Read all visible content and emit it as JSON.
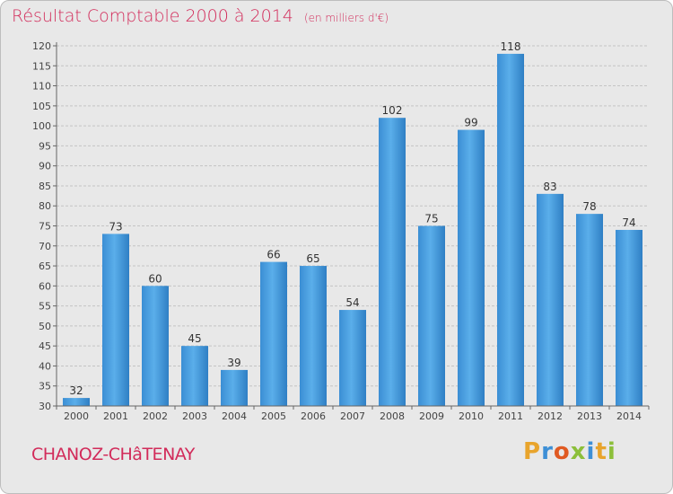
{
  "chart_data": {
    "type": "bar",
    "title": "Résultat Comptable 2000 à 2014",
    "subtitle": "(en milliers d'€)",
    "categories": [
      "2000",
      "2001",
      "2002",
      "2003",
      "2004",
      "2005",
      "2006",
      "2007",
      "2008",
      "2009",
      "2010",
      "2011",
      "2012",
      "2013",
      "2014"
    ],
    "values": [
      32,
      73,
      60,
      45,
      39,
      66,
      65,
      54,
      102,
      75,
      99,
      118,
      83,
      78,
      74
    ],
    "ylim": [
      30,
      120
    ],
    "yticks": [
      30,
      35,
      40,
      45,
      50,
      55,
      60,
      65,
      70,
      75,
      80,
      85,
      90,
      95,
      100,
      105,
      110,
      115,
      120
    ],
    "grid": true,
    "xlabel": "",
    "ylabel": ""
  },
  "commune": "CHANOZ-CHâTENAY",
  "logo": {
    "letters": [
      {
        "char": "P",
        "color": "#e8a42c"
      },
      {
        "char": "r",
        "color": "#3d8fd6"
      },
      {
        "char": "o",
        "color": "#e05a22"
      },
      {
        "char": "x",
        "color": "#8cbf3a"
      },
      {
        "char": "i",
        "color": "#3d8fd6"
      },
      {
        "char": "t",
        "color": "#e8a42c"
      },
      {
        "char": "i",
        "color": "#8cbf3a"
      }
    ]
  },
  "colors": {
    "bar": "#4ea3e4",
    "bar_dark": "#2f7fc4",
    "accent": "#d22b5a"
  }
}
